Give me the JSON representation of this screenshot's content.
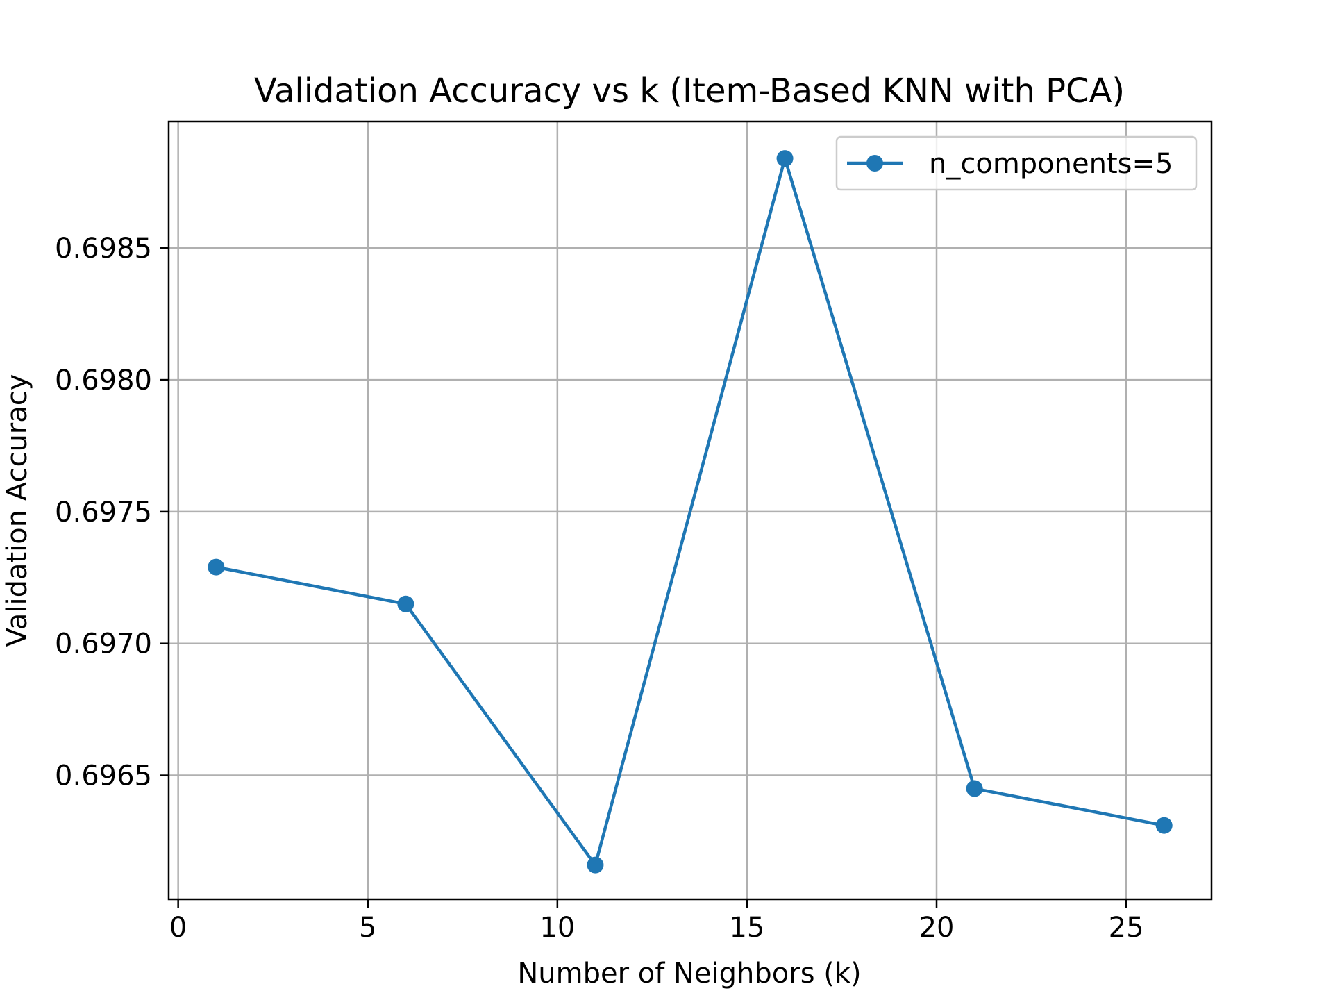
{
  "chart_data": {
    "type": "line",
    "title": "Validation Accuracy vs k (Item-Based KNN with PCA)",
    "xlabel": "Number of Neighbors (k)",
    "ylabel": "Validation Accuracy",
    "xlim": [
      -0.25,
      27.25
    ],
    "ylim": [
      0.69603,
      0.69898
    ],
    "xticks": [
      0,
      5,
      10,
      15,
      20,
      25
    ],
    "xtick_labels": [
      "0",
      "5",
      "10",
      "15",
      "20",
      "25"
    ],
    "yticks": [
      0.6965,
      0.697,
      0.6975,
      0.698,
      0.6985
    ],
    "ytick_labels": [
      "0.6965",
      "0.6970",
      "0.6975",
      "0.6980",
      "0.6985"
    ],
    "grid": true,
    "legend_position": "top-right",
    "series": [
      {
        "name": "n_components=5",
        "color": "#1f77b4",
        "marker": "circle",
        "x": [
          1,
          6,
          11,
          16,
          21,
          26
        ],
        "y": [
          0.69729,
          0.69715,
          0.69616,
          0.69884,
          0.69645,
          0.69631
        ]
      }
    ]
  }
}
